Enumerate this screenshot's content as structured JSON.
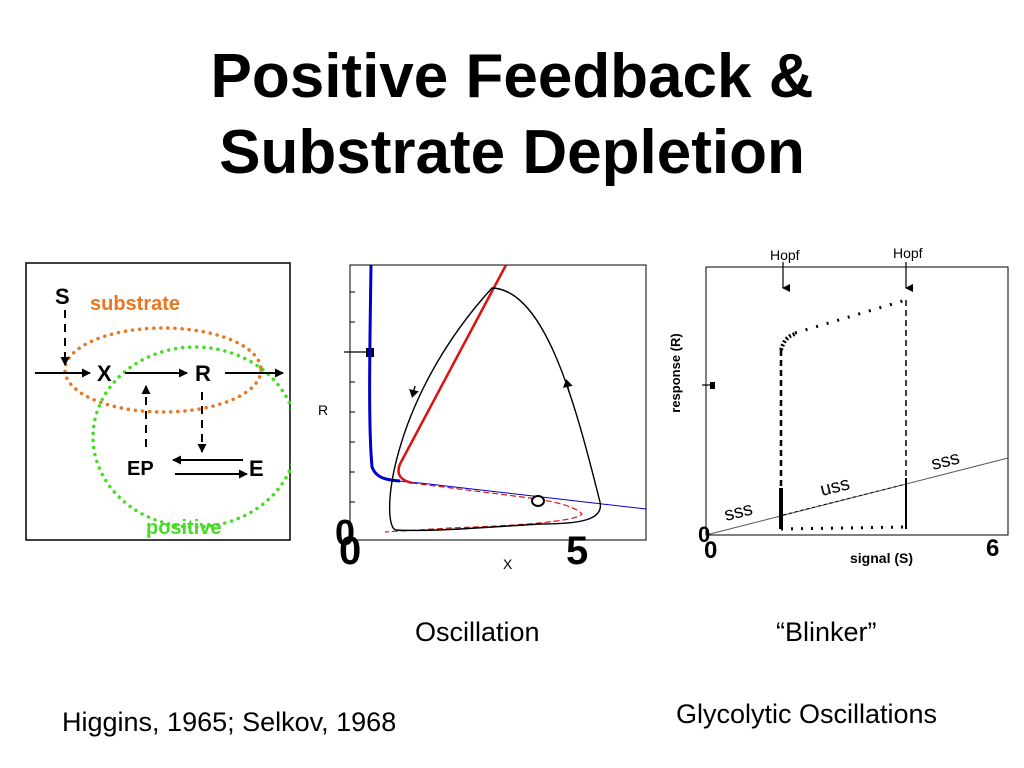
{
  "slide": {
    "title_line1": "Positive Feedback &",
    "title_line2": "Substrate Depletion",
    "caption_oscillation": "Oscillation",
    "caption_blinker": "“Blinker”",
    "caption_glycolytic": "Glycolytic Oscillations",
    "citation": "Higgins, 1965; Selkov, 1968"
  },
  "network": {
    "node_s": "S",
    "node_x": "X",
    "node_r": "R",
    "node_ep": "EP",
    "node_e": "E",
    "label_substrate": "substrate",
    "label_positive": "positive",
    "colors": {
      "substrate": "#e87722",
      "positive": "#44dd22"
    }
  },
  "phase_plot": {
    "xlabel": "X",
    "ylabel": "R",
    "tick_x0": "0",
    "tick_x1": "5",
    "tick_y0": "0",
    "colors": {
      "r_nullcline": "#dd1111",
      "x_nullcline": "#0000cc",
      "trajectory": "#000000"
    }
  },
  "bifurcation_plot": {
    "xlabel": "signal (S)",
    "ylabel": "response (R)",
    "hopf_left": "Hopf",
    "hopf_right": "Hopf",
    "label_sss_left": "sss",
    "label_uss": "uss",
    "label_sss_right": "sss",
    "tick_x0": "0",
    "tick_y0": "0",
    "tick_x_end": "6"
  }
}
